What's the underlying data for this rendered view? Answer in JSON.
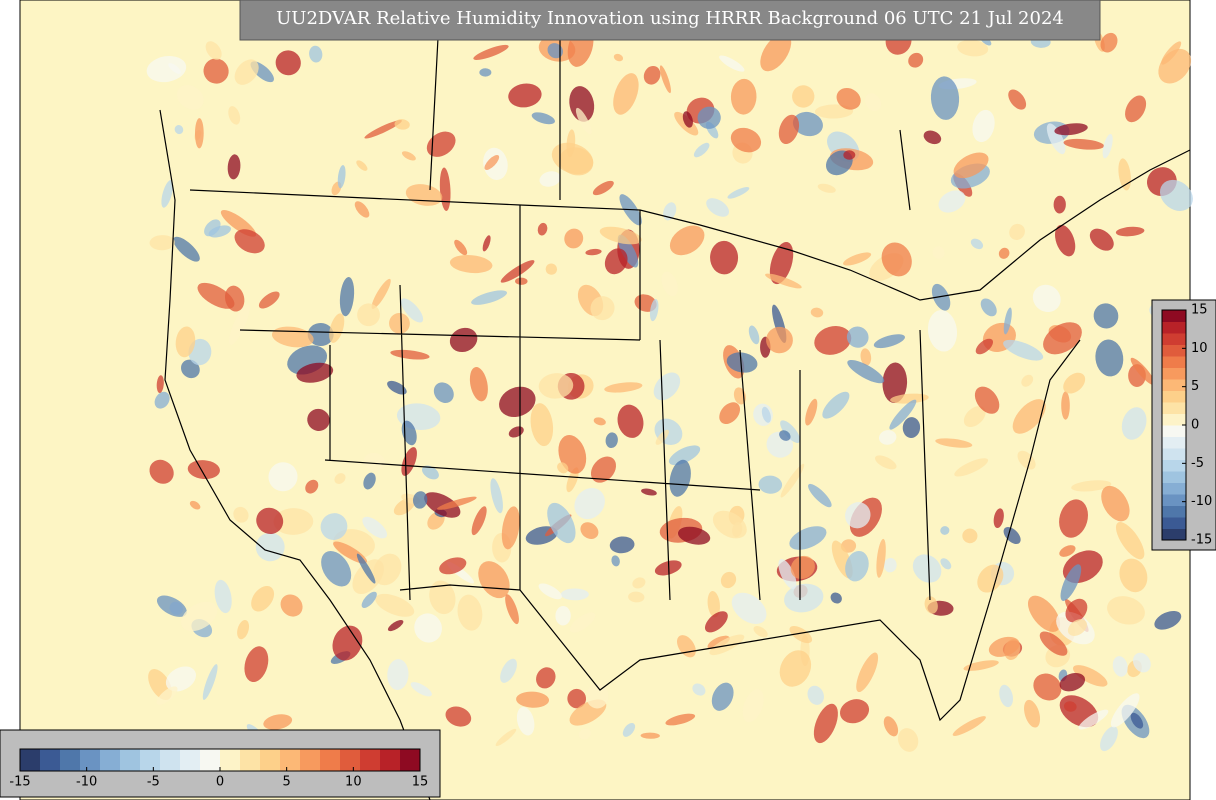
{
  "title": "UU2DVAR Relative Humidity Innovation using HRRR Background 06 UTC 21 Jul 2024",
  "colorbar": {
    "range": [
      -15,
      15
    ],
    "ticks": [
      -15,
      -10,
      -5,
      0,
      5,
      10,
      15
    ],
    "colors": [
      "#2b3d6b",
      "#3b5a94",
      "#4f77aa",
      "#6a93c2",
      "#86aed4",
      "#9fc4e0",
      "#b8d6ea",
      "#cfe3ef",
      "#e3eef3",
      "#f7f8f2",
      "#fdf3c8",
      "#fde3a6",
      "#fdd08a",
      "#fcb876",
      "#f79a5e",
      "#ef7c4a",
      "#e05c3c",
      "#cf3d31",
      "#b82228",
      "#8e0a22"
    ]
  }
}
